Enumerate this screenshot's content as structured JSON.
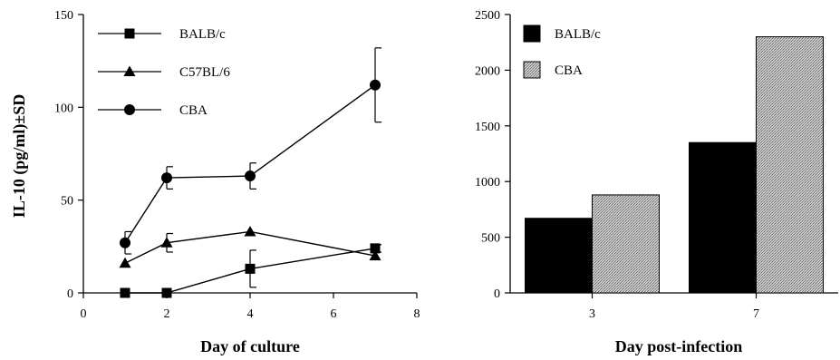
{
  "chart_data": [
    {
      "type": "line",
      "xlabel": "Day of culture",
      "ylabel": "IL-10 (pg/ml)±SD",
      "xlim": [
        0,
        8
      ],
      "ylim": [
        0,
        150
      ],
      "xticks": [
        "0",
        "2",
        "4",
        "6",
        "8"
      ],
      "yticks": [
        "0",
        "50",
        "100",
        "150"
      ],
      "legend_position": "top-left",
      "series": [
        {
          "name": "BALB/c",
          "marker": "square",
          "x": [
            1,
            2,
            4,
            7
          ],
          "y": [
            0,
            0,
            13,
            24
          ],
          "err": [
            0,
            0,
            10,
            2
          ]
        },
        {
          "name": "C57BL/6",
          "marker": "triangle",
          "x": [
            1,
            2,
            4,
            7
          ],
          "y": [
            16,
            27,
            33,
            20
          ],
          "err": [
            0,
            5,
            0,
            0
          ]
        },
        {
          "name": "CBA",
          "marker": "circle",
          "x": [
            1,
            2,
            4,
            7
          ],
          "y": [
            27,
            62,
            63,
            112
          ],
          "err": [
            6,
            6,
            7,
            20
          ]
        }
      ]
    },
    {
      "type": "bar",
      "xlabel": "Day post-infection",
      "ylabel": "",
      "ylim": [
        0,
        2500
      ],
      "yticks": [
        "0",
        "500",
        "1000",
        "1500",
        "2000",
        "2500"
      ],
      "categories": [
        "3",
        "7"
      ],
      "legend_position": "top-left",
      "series": [
        {
          "name": "BALB/c",
          "color": "#000000",
          "values": [
            670,
            1350
          ]
        },
        {
          "name": "CBA",
          "color": "#bdbdbd",
          "pattern": "stipple",
          "values": [
            880,
            2300
          ]
        }
      ]
    }
  ]
}
